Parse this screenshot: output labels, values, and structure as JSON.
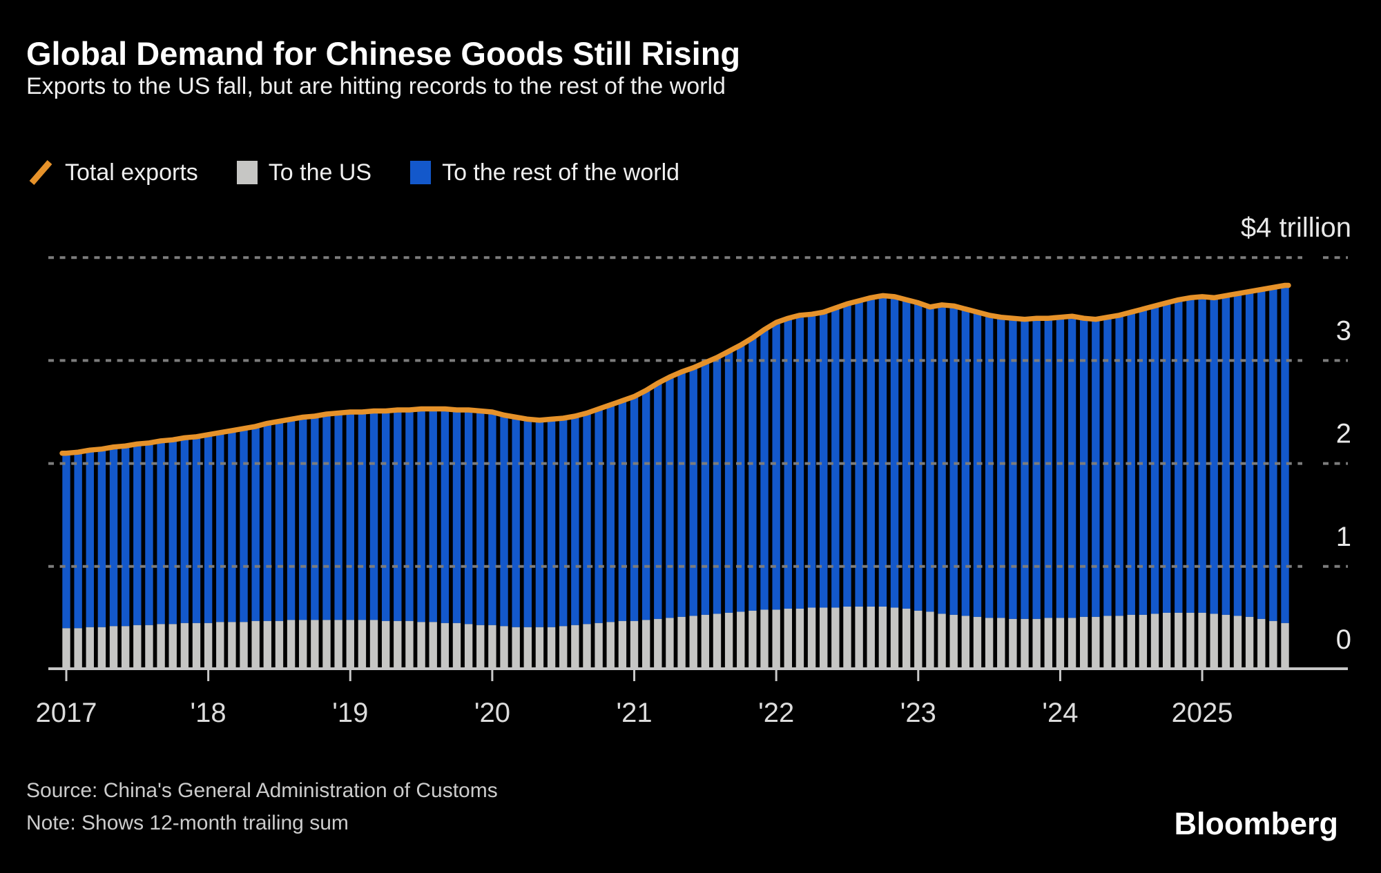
{
  "header": {
    "title": "Global Demand for Chinese Goods Still Rising",
    "subtitle": "Exports to the US fall, but are hitting records to the rest of the world"
  },
  "legend": {
    "total": "Total exports",
    "us": "To the US",
    "row": "To the rest of the world"
  },
  "footer": {
    "source": "Source: China's General Administration of Customs",
    "note": "Note: Shows 12-month trailing sum",
    "brand": "Bloomberg"
  },
  "chart_data": {
    "type": "bar",
    "subtype": "stacked-monthly-bars-with-total-line",
    "unit": "USD trillion, 12-month trailing sum",
    "x_start": "2017-01",
    "x_end": "2025-08",
    "freq": "monthly",
    "n_points": 104,
    "grid": "horizontal-dotted",
    "legend_position": "top-left",
    "ylim": [
      0,
      4.35
    ],
    "colors": {
      "total_line": "#E6922A",
      "us_bar": "#C6C6C4",
      "row_bar": "#1358CB",
      "gridline": "#7C7C7C",
      "baseline": "#C6C6C6",
      "tick": "#C9C9C9",
      "axis_label": "#E8E8E8",
      "x_label": "#DCDCDC",
      "background": "#000000"
    },
    "series": [
      {
        "name": "Total exports",
        "render": "line",
        "values": [
          2.1,
          2.11,
          2.13,
          2.14,
          2.16,
          2.17,
          2.19,
          2.2,
          2.22,
          2.23,
          2.25,
          2.26,
          2.28,
          2.3,
          2.32,
          2.34,
          2.36,
          2.39,
          2.41,
          2.43,
          2.45,
          2.46,
          2.48,
          2.49,
          2.5,
          2.5,
          2.51,
          2.51,
          2.52,
          2.52,
          2.53,
          2.53,
          2.53,
          2.52,
          2.52,
          2.51,
          2.5,
          2.47,
          2.45,
          2.43,
          2.42,
          2.43,
          2.44,
          2.46,
          2.49,
          2.53,
          2.57,
          2.61,
          2.65,
          2.71,
          2.78,
          2.84,
          2.89,
          2.93,
          2.98,
          3.03,
          3.09,
          3.15,
          3.22,
          3.3,
          3.37,
          3.41,
          3.44,
          3.45,
          3.47,
          3.51,
          3.55,
          3.58,
          3.61,
          3.63,
          3.62,
          3.59,
          3.56,
          3.52,
          3.54,
          3.53,
          3.5,
          3.47,
          3.44,
          3.42,
          3.41,
          3.4,
          3.41,
          3.41,
          3.42,
          3.43,
          3.41,
          3.4,
          3.42,
          3.44,
          3.47,
          3.5,
          3.53,
          3.56,
          3.59,
          3.61,
          3.62,
          3.61,
          3.63,
          3.65,
          3.67,
          3.69,
          3.71,
          3.73
        ]
      },
      {
        "name": "To the US",
        "render": "bar-bottom-stack",
        "values": [
          0.4,
          0.4,
          0.41,
          0.41,
          0.42,
          0.42,
          0.43,
          0.43,
          0.44,
          0.44,
          0.45,
          0.45,
          0.45,
          0.46,
          0.46,
          0.46,
          0.47,
          0.47,
          0.47,
          0.48,
          0.48,
          0.48,
          0.48,
          0.48,
          0.48,
          0.48,
          0.48,
          0.47,
          0.47,
          0.47,
          0.46,
          0.46,
          0.45,
          0.45,
          0.44,
          0.43,
          0.43,
          0.42,
          0.41,
          0.41,
          0.41,
          0.41,
          0.42,
          0.43,
          0.44,
          0.45,
          0.46,
          0.47,
          0.47,
          0.48,
          0.49,
          0.5,
          0.51,
          0.52,
          0.53,
          0.54,
          0.55,
          0.56,
          0.57,
          0.58,
          0.58,
          0.59,
          0.59,
          0.6,
          0.6,
          0.6,
          0.61,
          0.61,
          0.61,
          0.61,
          0.6,
          0.59,
          0.57,
          0.56,
          0.54,
          0.53,
          0.52,
          0.51,
          0.5,
          0.5,
          0.49,
          0.49,
          0.49,
          0.5,
          0.5,
          0.5,
          0.51,
          0.51,
          0.52,
          0.52,
          0.53,
          0.53,
          0.54,
          0.55,
          0.55,
          0.55,
          0.55,
          0.54,
          0.53,
          0.52,
          0.51,
          0.49,
          0.47,
          0.45
        ]
      },
      {
        "name": "To the rest of the world",
        "render": "bar-top-stack",
        "values_note": "derived per month as Total exports minus To the US"
      }
    ],
    "x_ticks": [
      {
        "month_index": 0,
        "label": "2017"
      },
      {
        "month_index": 12,
        "label": "'18"
      },
      {
        "month_index": 24,
        "label": "'19"
      },
      {
        "month_index": 36,
        "label": "'20"
      },
      {
        "month_index": 48,
        "label": "'21"
      },
      {
        "month_index": 60,
        "label": "'22"
      },
      {
        "month_index": 72,
        "label": "'23"
      },
      {
        "month_index": 84,
        "label": "'24"
      },
      {
        "month_index": 96,
        "label": "2025"
      }
    ],
    "y_ticks": [
      {
        "value": 4,
        "label": "$4 trillion"
      },
      {
        "value": 3,
        "label": "3"
      },
      {
        "value": 2,
        "label": "2"
      },
      {
        "value": 1,
        "label": "1"
      },
      {
        "value": 0,
        "label": "0"
      }
    ]
  }
}
